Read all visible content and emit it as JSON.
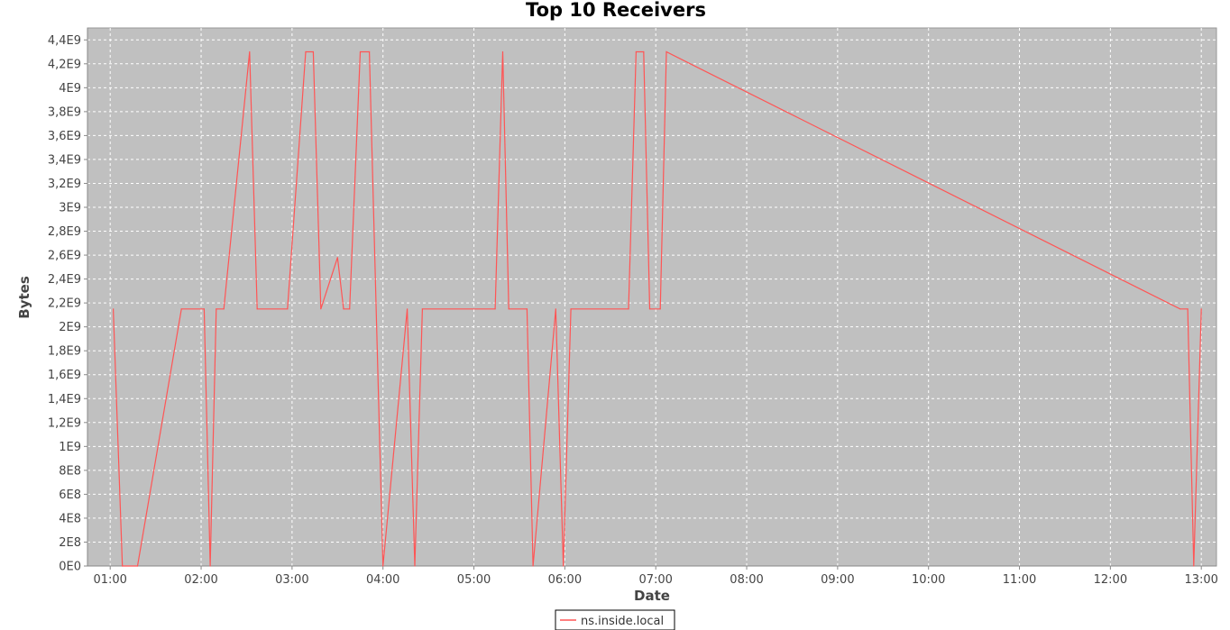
{
  "chart_data": {
    "type": "line",
    "title": "Top 10 Receivers",
    "xlabel": "Date",
    "ylabel": "Bytes",
    "x_ticks": [
      "01:00",
      "02:00",
      "03:00",
      "04:00",
      "05:00",
      "06:00",
      "07:00",
      "08:00",
      "09:00",
      "10:00",
      "11:00",
      "12:00",
      "13:00"
    ],
    "y_ticks": [
      "0E0",
      "2E8",
      "4E8",
      "6E8",
      "8E8",
      "1E9",
      "1,2E9",
      "1,4E9",
      "1,6E9",
      "1,8E9",
      "2E9",
      "2,2E9",
      "2,4E9",
      "2,6E9",
      "2,8E9",
      "3E9",
      "3,2E9",
      "3,4E9",
      "3,6E9",
      "3,8E9",
      "4E9",
      "4,2E9",
      "4,4E9"
    ],
    "xlim": [
      "00:45",
      "13:10"
    ],
    "ylim": [
      0,
      4500000000.0
    ],
    "grid": true,
    "legend_position": "bottom-center",
    "colors": {
      "plot_background": "#c0c0c0",
      "series": "#ff5555",
      "grid": "#ffffff"
    },
    "series": [
      {
        "name": "ns.inside.local",
        "x": [
          "01:02",
          "01:08",
          "01:18",
          "01:47",
          "02:02",
          "02:06",
          "02:10",
          "02:15",
          "02:32",
          "02:37",
          "02:57",
          "03:09",
          "03:14",
          "03:19",
          "03:30",
          "03:34",
          "03:38",
          "03:45",
          "03:51",
          "04:00",
          "04:16",
          "04:21",
          "04:26",
          "05:14",
          "05:19",
          "05:23",
          "05:35",
          "05:39",
          "05:54",
          "05:59",
          "06:04",
          "06:42",
          "06:47",
          "06:52",
          "06:56",
          "07:03",
          "07:07",
          "12:46",
          "12:51",
          "12:55",
          "13:00"
        ],
        "y": [
          2150000000.0,
          0,
          0,
          2150000000.0,
          2150000000.0,
          0,
          2150000000.0,
          2150000000.0,
          4300000000.0,
          2150000000.0,
          2150000000.0,
          4300000000.0,
          4300000000.0,
          2150000000.0,
          2580000000.0,
          2150000000.0,
          2150000000.0,
          4300000000.0,
          4300000000.0,
          0,
          2150000000.0,
          0,
          2150000000.0,
          2150000000.0,
          4300000000.0,
          2150000000.0,
          2150000000.0,
          0,
          2150000000.0,
          0,
          2150000000.0,
          2150000000.0,
          4300000000.0,
          4300000000.0,
          2150000000.0,
          2150000000.0,
          4300000000.0,
          2150000000.0,
          2150000000.0,
          0,
          2150000000.0
        ]
      }
    ]
  }
}
